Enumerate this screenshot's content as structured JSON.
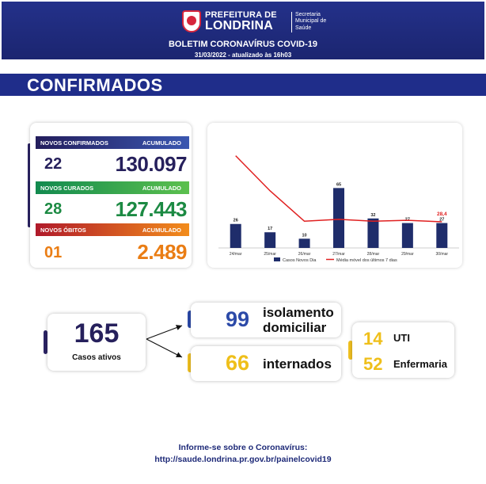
{
  "header": {
    "logo_line1": "PREFEITURA DE",
    "logo_line2": "LONDRINA",
    "logo_sub": [
      "Secretaria",
      "Municipal de",
      "Saúde"
    ],
    "bulletin_title": "BOLETIM CORONAVÍRUS COVID-19",
    "bulletin_date": "31/03/2022 - atualizado às 16h03"
  },
  "section": {
    "title": "CONFIRMADOS"
  },
  "stats": {
    "confirmados": {
      "label": "NOVOS CONFIRMADOS",
      "acc_label": "ACUMULADO",
      "novos": "22",
      "acumulado": "130.097",
      "color": "#26205c"
    },
    "curados": {
      "label": "NOVOS CURADOS",
      "acc_label": "ACUMULADO",
      "novos": "28",
      "acumulado": "127.443",
      "color": "#1c8a43"
    },
    "obitos": {
      "label": "NOVOS ÓBITOS",
      "acc_label": "ACUMULADO",
      "novos": "01",
      "acumulado": "2.489",
      "color": "#ea7d14"
    }
  },
  "chart_data": {
    "type": "bar",
    "categories": [
      "24/mar",
      "25/mar",
      "26/mar",
      "27/mar",
      "28/mar",
      "29/mar",
      "30/mar"
    ],
    "series": [
      {
        "name": "Casos Novos Dia",
        "type": "bar",
        "color": "#1f2d6b",
        "values": [
          26,
          17,
          10,
          65,
          32,
          27,
          27
        ]
      },
      {
        "name": "Média móvel dos últimos 7 dias",
        "type": "line",
        "color": "#e02020",
        "values": [
          100,
          62,
          29,
          31,
          29,
          30,
          28.4
        ]
      }
    ],
    "line_last_label": "28,4",
    "ylim": [
      0,
      110
    ],
    "legend_position": "bottom"
  },
  "summary": {
    "ativos": {
      "value": "165",
      "label": "Casos ativos"
    },
    "isolamento": {
      "value": "99",
      "label_l1": "isolamento",
      "label_l2": "domiciliar"
    },
    "internados": {
      "value": "66",
      "label": "internados"
    },
    "uti": {
      "value": "14",
      "label": "UTI"
    },
    "enfermaria": {
      "value": "52",
      "label": "Enfermaria"
    }
  },
  "footer": {
    "line1": "Informe-se sobre o Coronavírus:",
    "line2": "http://saude.londrina.pr.gov.br/painelcovid19"
  }
}
